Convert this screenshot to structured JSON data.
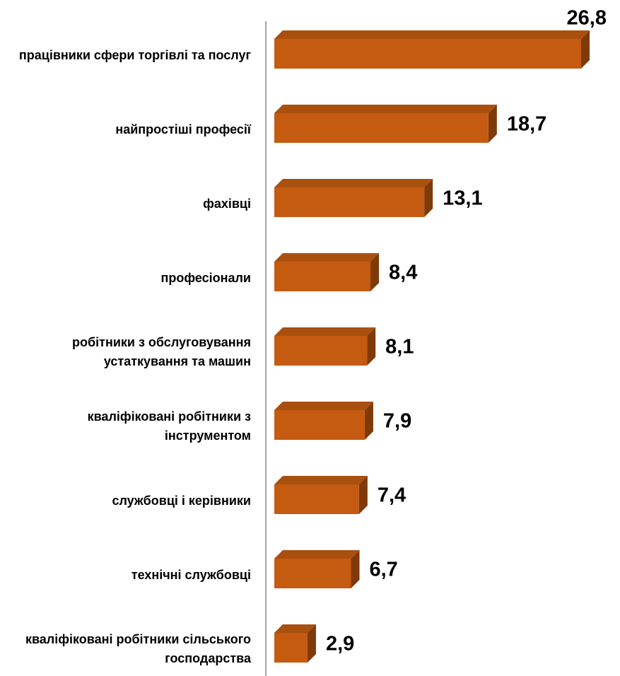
{
  "chart_data": {
    "type": "bar",
    "categories": [
      "працівники сфери торгівлі та послуг",
      "найпростіші професії",
      "фахівці",
      "професіонали",
      "робітники з обслуговування устаткування та машин",
      "кваліфіковані робітники з інструментом",
      "службовці і керівники",
      "технічні службовці",
      "кваліфіковані робітники сільського господарства"
    ],
    "values": [
      26.8,
      18.7,
      13.1,
      8.4,
      8.1,
      7.9,
      7.4,
      6.7,
      2.9
    ],
    "value_labels": [
      "26,8",
      "18,7",
      "13,1",
      "8,4",
      "8,1",
      "7,9",
      "7,4",
      "6,7",
      "2,9"
    ],
    "color": "#c55a11"
  }
}
